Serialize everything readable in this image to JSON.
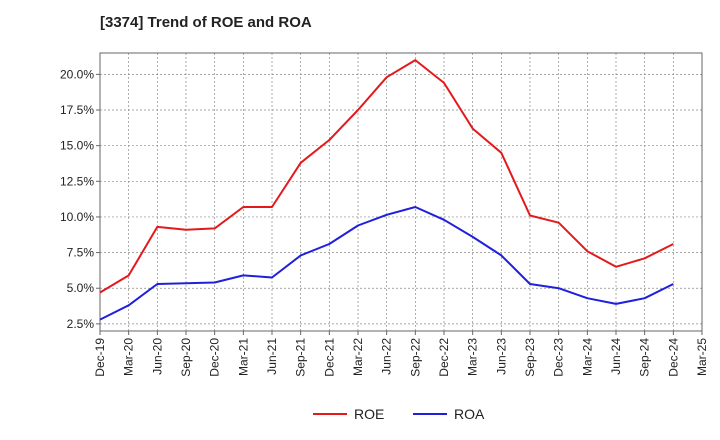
{
  "chart_data": {
    "type": "line",
    "title": "[3374]  Trend of ROE and ROA",
    "xlabel": "",
    "ylabel": "",
    "categories": [
      "Dec-19",
      "Mar-20",
      "Jun-20",
      "Sep-20",
      "Dec-20",
      "Mar-21",
      "Jun-21",
      "Sep-21",
      "Dec-21",
      "Mar-22",
      "Jun-22",
      "Sep-22",
      "Dec-22",
      "Mar-23",
      "Jun-23",
      "Sep-23",
      "Dec-23",
      "Mar-24",
      "Jun-24",
      "Sep-24",
      "Dec-24",
      "Mar-25"
    ],
    "y_ticks": [
      "2.5%",
      "5.0%",
      "7.5%",
      "10.0%",
      "12.5%",
      "15.0%",
      "17.5%",
      "20.0%"
    ],
    "ylim": [
      2.0,
      21.5
    ],
    "grid": true,
    "legend_position": "bottom",
    "series": [
      {
        "name": "ROE",
        "color": "#e31a1c",
        "values": [
          4.7,
          5.9,
          9.3,
          9.1,
          9.2,
          10.7,
          10.7,
          13.8,
          15.4,
          17.5,
          19.8,
          21.0,
          19.4,
          16.2,
          14.5,
          10.1,
          9.6,
          7.6,
          6.5,
          7.1,
          8.1,
          null
        ]
      },
      {
        "name": "ROA",
        "color": "#1f1fdc",
        "values": [
          2.8,
          3.8,
          5.3,
          5.35,
          5.4,
          5.9,
          5.75,
          7.3,
          8.1,
          9.4,
          10.15,
          10.7,
          9.8,
          8.6,
          7.3,
          5.3,
          5.0,
          4.3,
          3.9,
          4.3,
          5.3,
          null
        ]
      }
    ]
  }
}
